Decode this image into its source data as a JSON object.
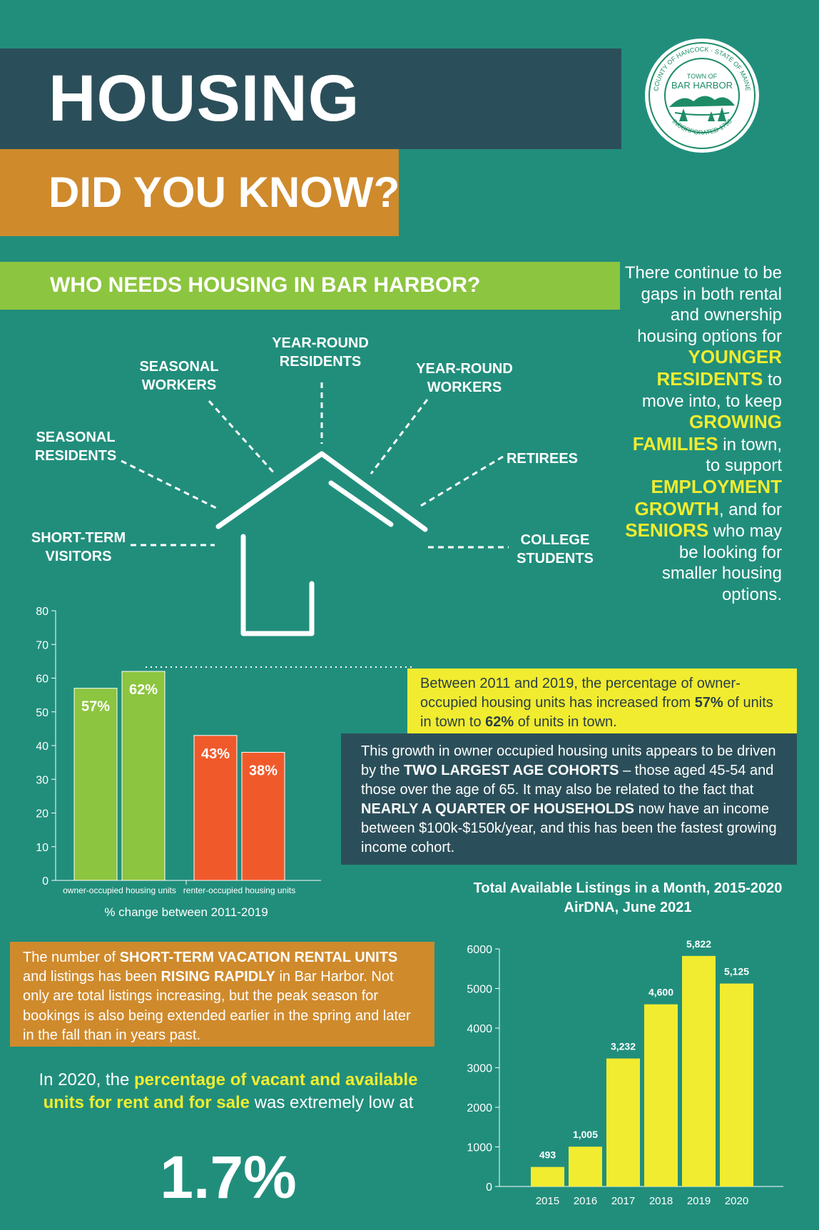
{
  "header": {
    "title": "HOUSING",
    "subtitle": "DID YOU KNOW?"
  },
  "seal": {
    "label": "Town of Bar Harbor seal",
    "line1": "TOWN OF",
    "line2": "BAR HARBOR",
    "ring_top": "COUNTY OF HANCOCK · STATE OF MAINE",
    "ring_bottom": "INCORPORATED 1796"
  },
  "section": {
    "title": "WHO NEEDS HOUSING IN BAR HARBOR?"
  },
  "house_labels": {
    "year_round_residents": [
      "YEAR-ROUND",
      "RESIDENTS"
    ],
    "seasonal_workers": [
      "SEASONAL",
      "WORKERS"
    ],
    "year_round_workers": [
      "YEAR-ROUND",
      "WORKERS"
    ],
    "seasonal_residents": [
      "SEASONAL",
      "RESIDENTS"
    ],
    "retirees": [
      "RETIREES"
    ],
    "short_term_visitors": [
      "SHORT-TERM",
      "VISITORS"
    ],
    "college_students": [
      "COLLEGE",
      "STUDENTS"
    ]
  },
  "gaps": {
    "p1": "There continue to be gaps in both rental and ownership housing options for",
    "h1": "YOUNGER RESIDENTS",
    "p2": "to move into, to keep",
    "h2": "GROWING FAMILIES",
    "p3": "in town, to support",
    "h3": "EMPLOYMENT GROWTH",
    "p4": ", and for",
    "h4": "SENIORS",
    "p5": "who may be looking for smaller housing options."
  },
  "owner_box": {
    "p1": "Between 2011 and 2019, the percentage of owner-occupied housing units has increased from",
    "v1": "57%",
    "p2": "of units in town to",
    "v2": "62%",
    "p3": "of units in town."
  },
  "growth_box": {
    "p1": "This growth in owner occupied housing units appears to be driven by the",
    "b1": "TWO LARGEST AGE COHORTS",
    "p2": "– those aged 45-54 and those over the age of 65. It may also be related to the fact that",
    "b2": "NEARLY A QUARTER OF HOUSEHOLDS",
    "p3": "now have an income between $100k-$150k/year, and this has been the fastest growing income cohort."
  },
  "str_box": {
    "p1": "The number of",
    "b1": "SHORT-TERM VACATION RENTAL UNITS",
    "p2": "and listings has been",
    "b2": "RISING RAPIDLY",
    "p3": "in Bar Harbor. Not only are total listings increasing, but the peak season for bookings is also being extended earlier in the spring and later in the fall than in years past."
  },
  "vacancy": {
    "p1": "In 2020, the",
    "h1": "percentage of vacant and available units for rent and for sale",
    "p2": "was extremely low at",
    "value": "1.7%"
  },
  "colors": {
    "background": "#218e7c",
    "dark_band": "#2b4f5a",
    "orange": "#cf8a2c",
    "green": "#8cc53f",
    "yellow": "#f1ec2f",
    "red": "#f05a2b"
  },
  "chart_data": [
    {
      "type": "bar",
      "xlabel": "% change between 2011-2019",
      "ylim": [
        0,
        80
      ],
      "yticks": [
        0,
        10,
        20,
        30,
        40,
        50,
        60,
        70,
        80
      ],
      "groups": [
        {
          "label": "owner-occupied housing units",
          "values": [
            57,
            62
          ],
          "value_labels": [
            "57%",
            "62%"
          ],
          "color": "#8cc53f"
        },
        {
          "label": "renter-occupied housing units",
          "values": [
            43,
            38
          ],
          "value_labels": [
            "43%",
            "38%"
          ],
          "color": "#f05a2b"
        }
      ]
    },
    {
      "type": "bar",
      "title": "Total Available Listings in a Month, 2015-2020",
      "subtitle": "AirDNA, June 2021",
      "categories": [
        "2015",
        "2016",
        "2017",
        "2018",
        "2019",
        "2020"
      ],
      "values": [
        493,
        1005,
        3232,
        4600,
        5822,
        5125
      ],
      "value_labels": [
        "493",
        "1,005",
        "3,232",
        "4,600",
        "5,822",
        "5,125"
      ],
      "ylim": [
        0,
        6000
      ],
      "yticks": [
        0,
        1000,
        2000,
        3000,
        4000,
        5000,
        6000
      ],
      "color": "#f1ec2f"
    }
  ]
}
